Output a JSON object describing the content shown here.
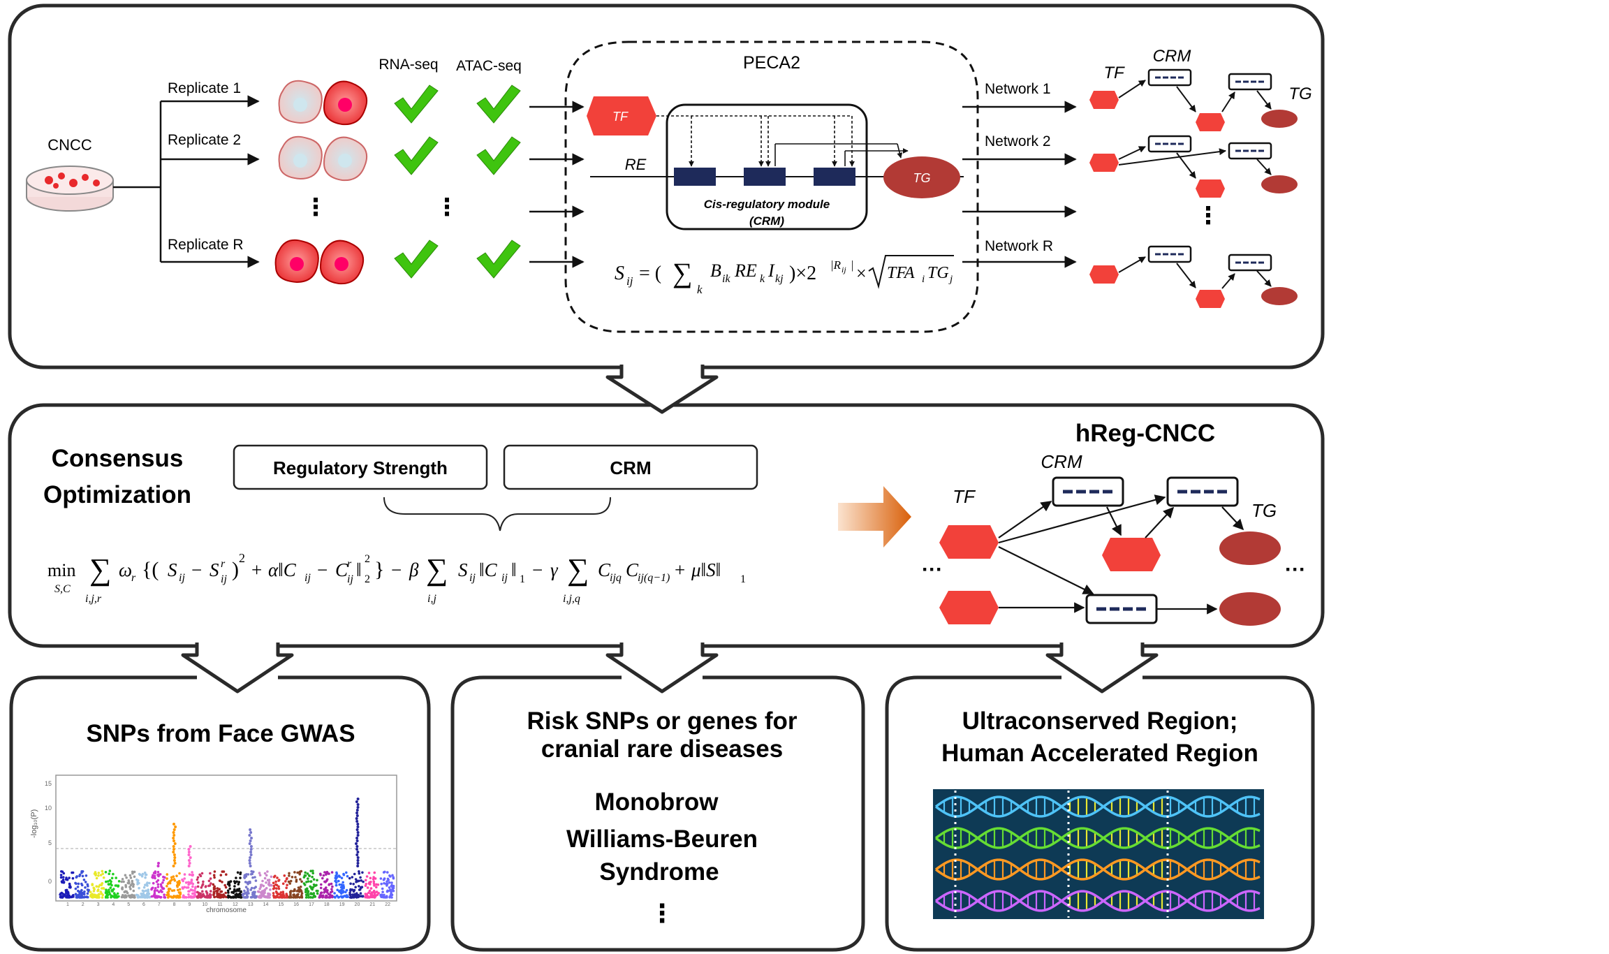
{
  "top": {
    "cncc_label": "CNCC",
    "replicates": [
      "Replicate 1",
      "Replicate 2",
      "Replicate R"
    ],
    "rnaseq_label": "RNA-seq",
    "atacseq_label": "ATAC-seq",
    "ellipsis": "⋮",
    "peca2": {
      "title": "PECA2",
      "tf": "TF",
      "re": "RE",
      "tg": "TG",
      "crm_line1": "Cis-regulatory module",
      "crm_line2": "(CRM)",
      "formula": {
        "s_ij": "S",
        "s_sub": "ij",
        "eq": " = (",
        "sum": "∑",
        "sum_sub": "k",
        "body": "B",
        "body_ik": "ik",
        "re_k": "RE",
        "re_sub": "k",
        "i_kj": "I",
        "i_sub": "kj",
        "times2": ")×2",
        "exp": "|R",
        "exp_sub": "ij",
        "exp_end": "|",
        "times_sqrt": "×",
        "sqrt_body": "TFA",
        "sqrt_i": "i",
        "sqrt_tg": "TG",
        "sqrt_j": "j"
      }
    },
    "networks": [
      "Network 1",
      "Network 2",
      "Network R"
    ],
    "net_tf": "TF",
    "net_crm": "CRM",
    "net_tg": "TG"
  },
  "middle": {
    "title_line1": "Consensus",
    "title_line2": "Optimization",
    "box1": "Regulatory Strength",
    "box2": "CRM",
    "formula": "min∑ ωr {(Sij − Srij)² + α‖Cij − Crij‖²₂} − β∑ Sij‖Cij‖₁ − γ∑ CijqCij(q−1) + μ‖S‖₁",
    "min_text": "min",
    "min_sub": "S,C",
    "sum_sub1": "i,j,r",
    "sum_sub2": "i,j",
    "sum_sub3": "i,j,q",
    "hreg_title": "hReg-CNCC",
    "crm": "CRM",
    "tf": "TF",
    "tg": "TG",
    "dots": "···"
  },
  "bottom": {
    "panel1": {
      "title": "SNPs from Face GWAS",
      "ylabel": "-log₁₀(P)",
      "xlabel": "chromosome",
      "yticks": [
        "15",
        "10",
        "5",
        "0"
      ],
      "xticks": [
        "1",
        "2",
        "3",
        "4",
        "5",
        "6",
        "7",
        "8",
        "9",
        "10",
        "11",
        "12",
        "13",
        "14",
        "15",
        "16",
        "17",
        "18",
        "19",
        "20",
        "21",
        "22"
      ]
    },
    "panel2": {
      "title_line1": "Risk SNPs or genes for",
      "title_line2": "cranial rare diseases",
      "item1": "Monobrow",
      "item2": "Williams-Beuren",
      "item3": "Syndrome",
      "dots": "⋮"
    },
    "panel3": {
      "title_line1": "Ultraconserved Region;",
      "title_line2": "Human Accelerated Region"
    }
  },
  "colors": {
    "tf_red": "#f2413a",
    "tg_darkred": "#b23a35",
    "crm_navy": "#1e2a5a",
    "check_green": "#3fc40f",
    "arrow_orange": "#e06a10",
    "border": "#2a2a2a",
    "dna_bg": "#0e3a55"
  }
}
